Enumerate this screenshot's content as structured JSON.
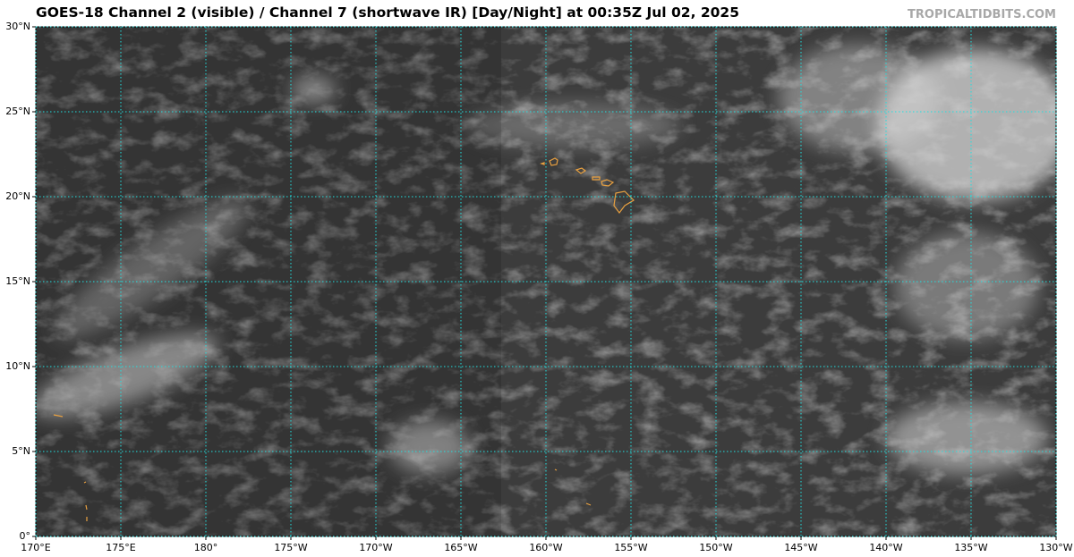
{
  "map": {
    "title": "GOES-18 Channel 2 (visible) / Channel 7 (shortwave IR) [Day/Night] at 00:35Z Jul 02, 2025",
    "source": "TROPICALTIDBITS.COM",
    "lon_range": [
      170,
      230
    ],
    "lat_range": [
      0,
      30
    ],
    "lon_ticks": [
      {
        "value": 170,
        "label": "170°E"
      },
      {
        "value": 175,
        "label": "175°E"
      },
      {
        "value": 180,
        "label": "180°"
      },
      {
        "value": 185,
        "label": "175°W"
      },
      {
        "value": 190,
        "label": "170°W"
      },
      {
        "value": 195,
        "label": "165°W"
      },
      {
        "value": 200,
        "label": "160°W"
      },
      {
        "value": 205,
        "label": "155°W"
      },
      {
        "value": 210,
        "label": "150°W"
      },
      {
        "value": 215,
        "label": "145°W"
      },
      {
        "value": 220,
        "label": "140°W"
      },
      {
        "value": 225,
        "label": "135°W"
      },
      {
        "value": 230,
        "label": "130°W"
      }
    ],
    "lat_ticks": [
      {
        "value": 0,
        "label": "0°"
      },
      {
        "value": 5,
        "label": "5°N"
      },
      {
        "value": 10,
        "label": "10°N"
      },
      {
        "value": 15,
        "label": "15°N"
      },
      {
        "value": 20,
        "label": "20°N"
      },
      {
        "value": 25,
        "label": "25°N"
      },
      {
        "value": 30,
        "label": "30°N"
      }
    ]
  }
}
